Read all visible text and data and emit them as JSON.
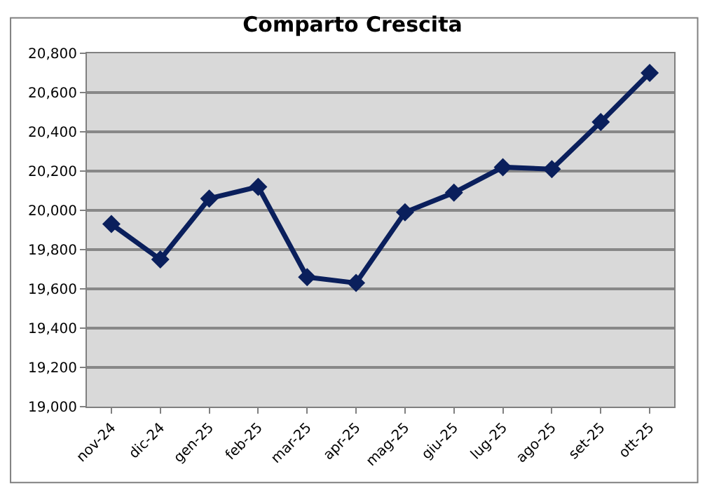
{
  "chart_data": {
    "type": "line",
    "title": "Comparto Crescita",
    "categories": [
      "nov-24",
      "dic-24",
      "gen-25",
      "feb-25",
      "mar-25",
      "apr-25",
      "mag-25",
      "giu-25",
      "lug-25",
      "ago-25",
      "set-25",
      "ott-25"
    ],
    "series": [
      {
        "color": "#0a1f5c",
        "values": [
          19930,
          19750,
          20060,
          20120,
          19660,
          19630,
          19990,
          20090,
          20220,
          20210,
          20450,
          20700
        ]
      }
    ],
    "ylim": [
      19000,
      20800
    ],
    "yticks": [
      {
        "value": 19000,
        "label": "19,000"
      },
      {
        "value": 19200,
        "label": "19,200"
      },
      {
        "value": 19400,
        "label": "19,400"
      },
      {
        "value": 19600,
        "label": "19,600"
      },
      {
        "value": 19800,
        "label": "19,800"
      },
      {
        "value": 20000,
        "label": "20,000"
      },
      {
        "value": 20200,
        "label": "20,200"
      },
      {
        "value": 20400,
        "label": "20,400"
      },
      {
        "value": 20600,
        "label": "20,600"
      },
      {
        "value": 20800,
        "label": "20,800"
      }
    ],
    "grid": "y",
    "marker": "diamond",
    "line_style": "solid"
  }
}
